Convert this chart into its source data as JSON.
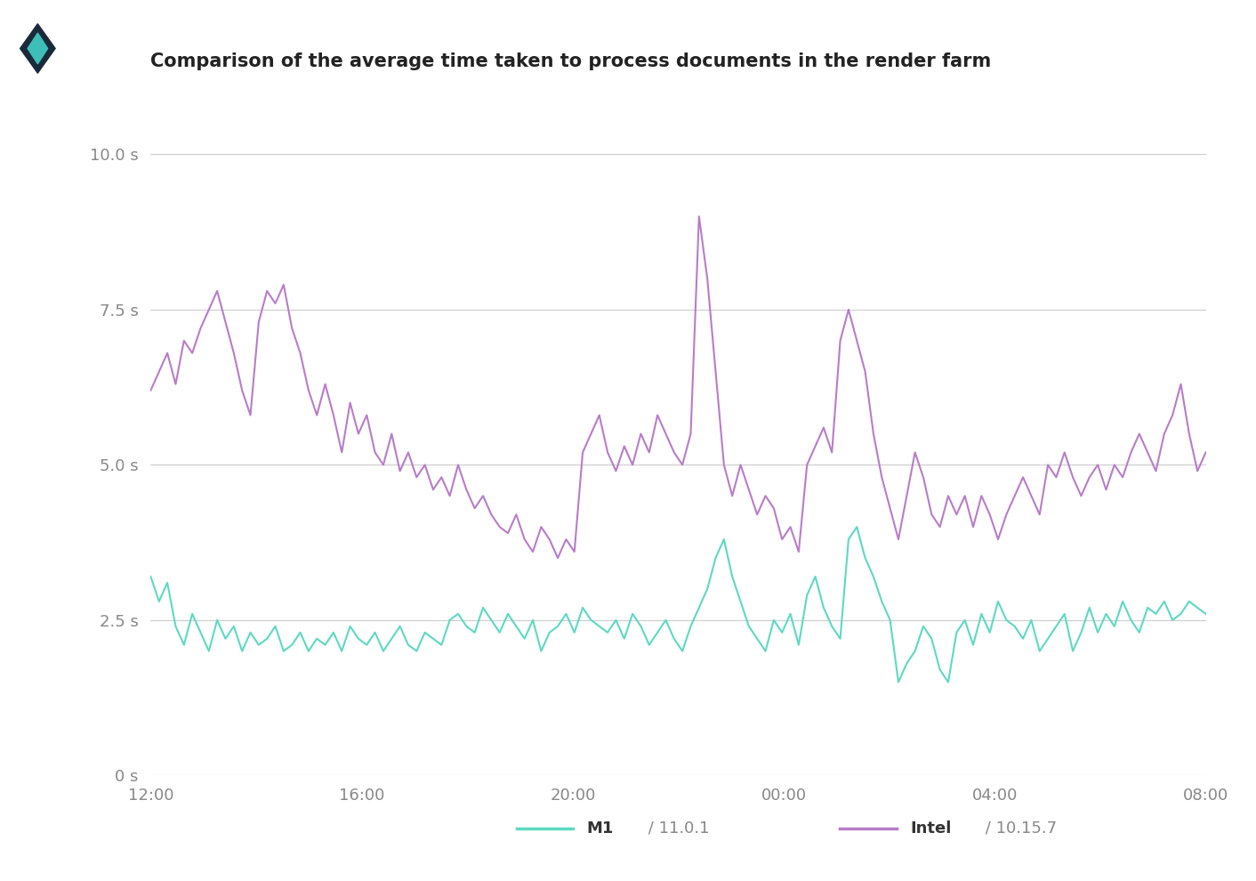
{
  "title": "Comparison of the average time taken to process documents in the render farm",
  "background_color": "#ffffff",
  "left_panel_color": "#4db8b0",
  "m1_color": "#5dd9c1",
  "intel_color": "#b87cc8",
  "ylim": [
    0,
    10.5
  ],
  "yticks": [
    0,
    2.5,
    5.0,
    7.5,
    10.0
  ],
  "ytick_labels": [
    "0 s",
    "2.5 s",
    "5.0 s",
    "7.5 s",
    "10.0 s"
  ],
  "xtick_labels": [
    "12:00",
    "16:00",
    "20:00",
    "00:00",
    "04:00",
    "08:00"
  ],
  "legend_m1_label": "M1",
  "legend_m1_sub": " / 11.0.1",
  "legend_intel_label": "Intel",
  "legend_intel_sub": " / 10.15.7",
  "m1_data": [
    3.2,
    2.8,
    3.1,
    2.4,
    2.1,
    2.6,
    2.3,
    2.0,
    2.5,
    2.2,
    2.4,
    2.0,
    2.3,
    2.1,
    2.2,
    2.4,
    2.0,
    2.1,
    2.3,
    2.0,
    2.2,
    2.1,
    2.3,
    2.0,
    2.4,
    2.2,
    2.1,
    2.3,
    2.0,
    2.2,
    2.4,
    2.1,
    2.0,
    2.3,
    2.2,
    2.1,
    2.5,
    2.6,
    2.4,
    2.3,
    2.7,
    2.5,
    2.3,
    2.6,
    2.4,
    2.2,
    2.5,
    2.0,
    2.3,
    2.4,
    2.6,
    2.3,
    2.7,
    2.5,
    2.4,
    2.3,
    2.5,
    2.2,
    2.6,
    2.4,
    2.1,
    2.3,
    2.5,
    2.2,
    2.0,
    2.4,
    2.7,
    3.0,
    3.5,
    3.8,
    3.2,
    2.8,
    2.4,
    2.2,
    2.0,
    2.5,
    2.3,
    2.6,
    2.1,
    2.9,
    3.2,
    2.7,
    2.4,
    2.2,
    3.8,
    4.0,
    3.5,
    3.2,
    2.8,
    2.5,
    1.5,
    1.8,
    2.0,
    2.4,
    2.2,
    1.7,
    1.5,
    2.3,
    2.5,
    2.1,
    2.6,
    2.3,
    2.8,
    2.5,
    2.4,
    2.2,
    2.5,
    2.0,
    2.2,
    2.4,
    2.6,
    2.0,
    2.3,
    2.7,
    2.3,
    2.6,
    2.4,
    2.8,
    2.5,
    2.3,
    2.7,
    2.6,
    2.8,
    2.5,
    2.6,
    2.8,
    2.7,
    2.6
  ],
  "intel_data": [
    6.2,
    6.5,
    6.8,
    6.3,
    7.0,
    6.8,
    7.2,
    7.5,
    7.8,
    7.3,
    6.8,
    6.2,
    5.8,
    7.3,
    7.8,
    7.6,
    7.9,
    7.2,
    6.8,
    6.2,
    5.8,
    6.3,
    5.8,
    5.2,
    6.0,
    5.5,
    5.8,
    5.2,
    5.0,
    5.5,
    4.9,
    5.2,
    4.8,
    5.0,
    4.6,
    4.8,
    4.5,
    5.0,
    4.6,
    4.3,
    4.5,
    4.2,
    4.0,
    3.9,
    4.2,
    3.8,
    3.6,
    4.0,
    3.8,
    3.5,
    3.8,
    3.6,
    5.2,
    5.5,
    5.8,
    5.2,
    4.9,
    5.3,
    5.0,
    5.5,
    5.2,
    5.8,
    5.5,
    5.2,
    5.0,
    5.5,
    9.0,
    8.0,
    6.5,
    5.0,
    4.5,
    5.0,
    4.6,
    4.2,
    4.5,
    4.3,
    3.8,
    4.0,
    3.6,
    5.0,
    5.3,
    5.6,
    5.2,
    7.0,
    7.5,
    7.0,
    6.5,
    5.5,
    4.8,
    4.3,
    3.8,
    4.5,
    5.2,
    4.8,
    4.2,
    4.0,
    4.5,
    4.2,
    4.5,
    4.0,
    4.5,
    4.2,
    3.8,
    4.2,
    4.5,
    4.8,
    4.5,
    4.2,
    5.0,
    4.8,
    5.2,
    4.8,
    4.5,
    4.8,
    5.0,
    4.6,
    5.0,
    4.8,
    5.2,
    5.5,
    5.2,
    4.9,
    5.5,
    5.8,
    6.3,
    5.5,
    4.9,
    5.2
  ]
}
